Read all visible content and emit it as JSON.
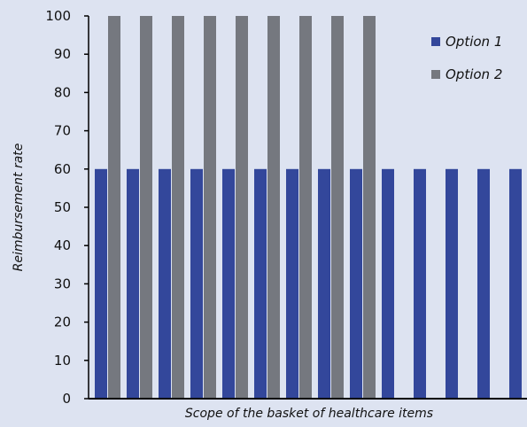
{
  "chart_data": {
    "type": "bar",
    "title": "",
    "xlabel": "Scope of the basket of healthcare items",
    "ylabel": "Reimbursement rate",
    "ylim": [
      0,
      100
    ],
    "yticks": [
      0,
      10,
      20,
      30,
      40,
      50,
      60,
      70,
      80,
      90,
      100
    ],
    "categories": [
      "",
      "",
      "",
      "",
      "",
      "",
      "",
      "",
      "",
      "",
      "",
      "",
      "",
      ""
    ],
    "series": [
      {
        "name": "Option 1",
        "color": "#33479b",
        "values": [
          60,
          60,
          60,
          60,
          60,
          60,
          60,
          60,
          60,
          60,
          60,
          60,
          60,
          60
        ]
      },
      {
        "name": "Option 2",
        "color": "#75787f",
        "values": [
          100,
          100,
          100,
          100,
          100,
          100,
          100,
          100,
          100,
          null,
          null,
          null,
          null,
          null
        ]
      }
    ],
    "legend_position": "top-right",
    "grid": false
  }
}
